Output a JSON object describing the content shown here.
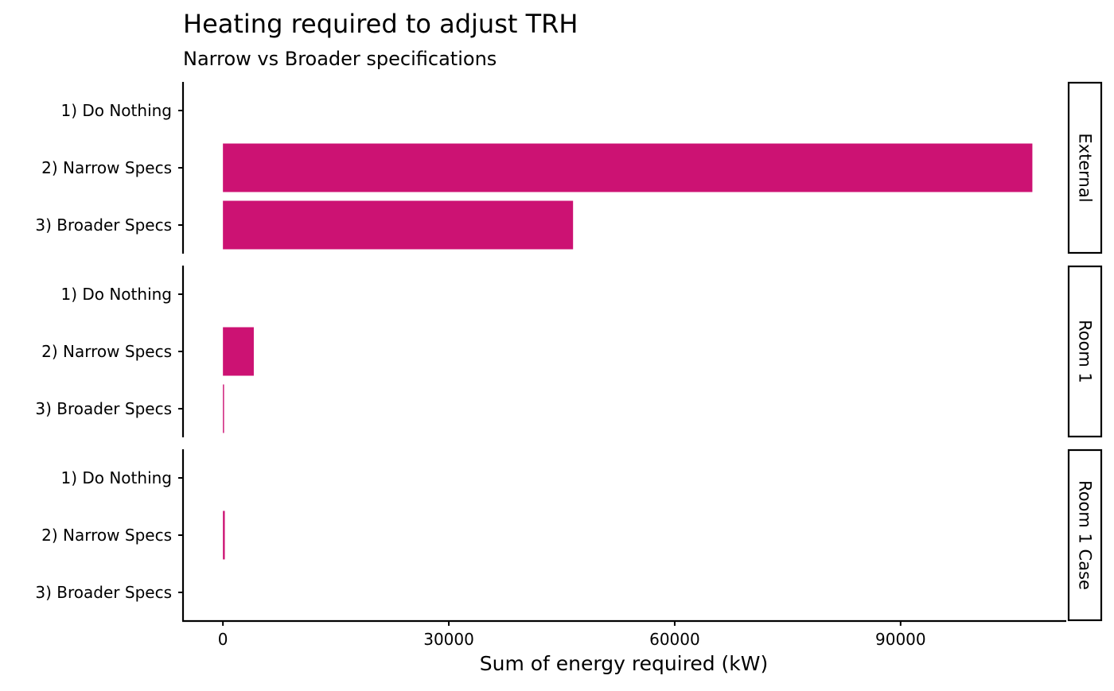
{
  "chart_data": {
    "type": "bar",
    "orientation": "horizontal",
    "title": "Heating required to adjust TRH",
    "subtitle": "Narrow vs Broader specifications",
    "xlabel": "Sum of energy required (kW)",
    "ylabel": "",
    "categories": [
      "1) Do Nothing",
      "2) Narrow Specs",
      "3) Broader Specs"
    ],
    "xlim": [
      -5300,
      112000
    ],
    "xticks": [
      0,
      30000,
      60000,
      90000
    ],
    "xtick_labels": [
      "0",
      "30000",
      "60000",
      "90000"
    ],
    "bar_color": "#CC1273",
    "grid": false,
    "facets": [
      {
        "label": "External",
        "values": [
          0,
          107500,
          46500
        ]
      },
      {
        "label": "Room 1",
        "values": [
          0,
          4100,
          150
        ]
      },
      {
        "label": "Room 1 Case",
        "values": [
          0,
          250,
          0
        ]
      }
    ]
  }
}
